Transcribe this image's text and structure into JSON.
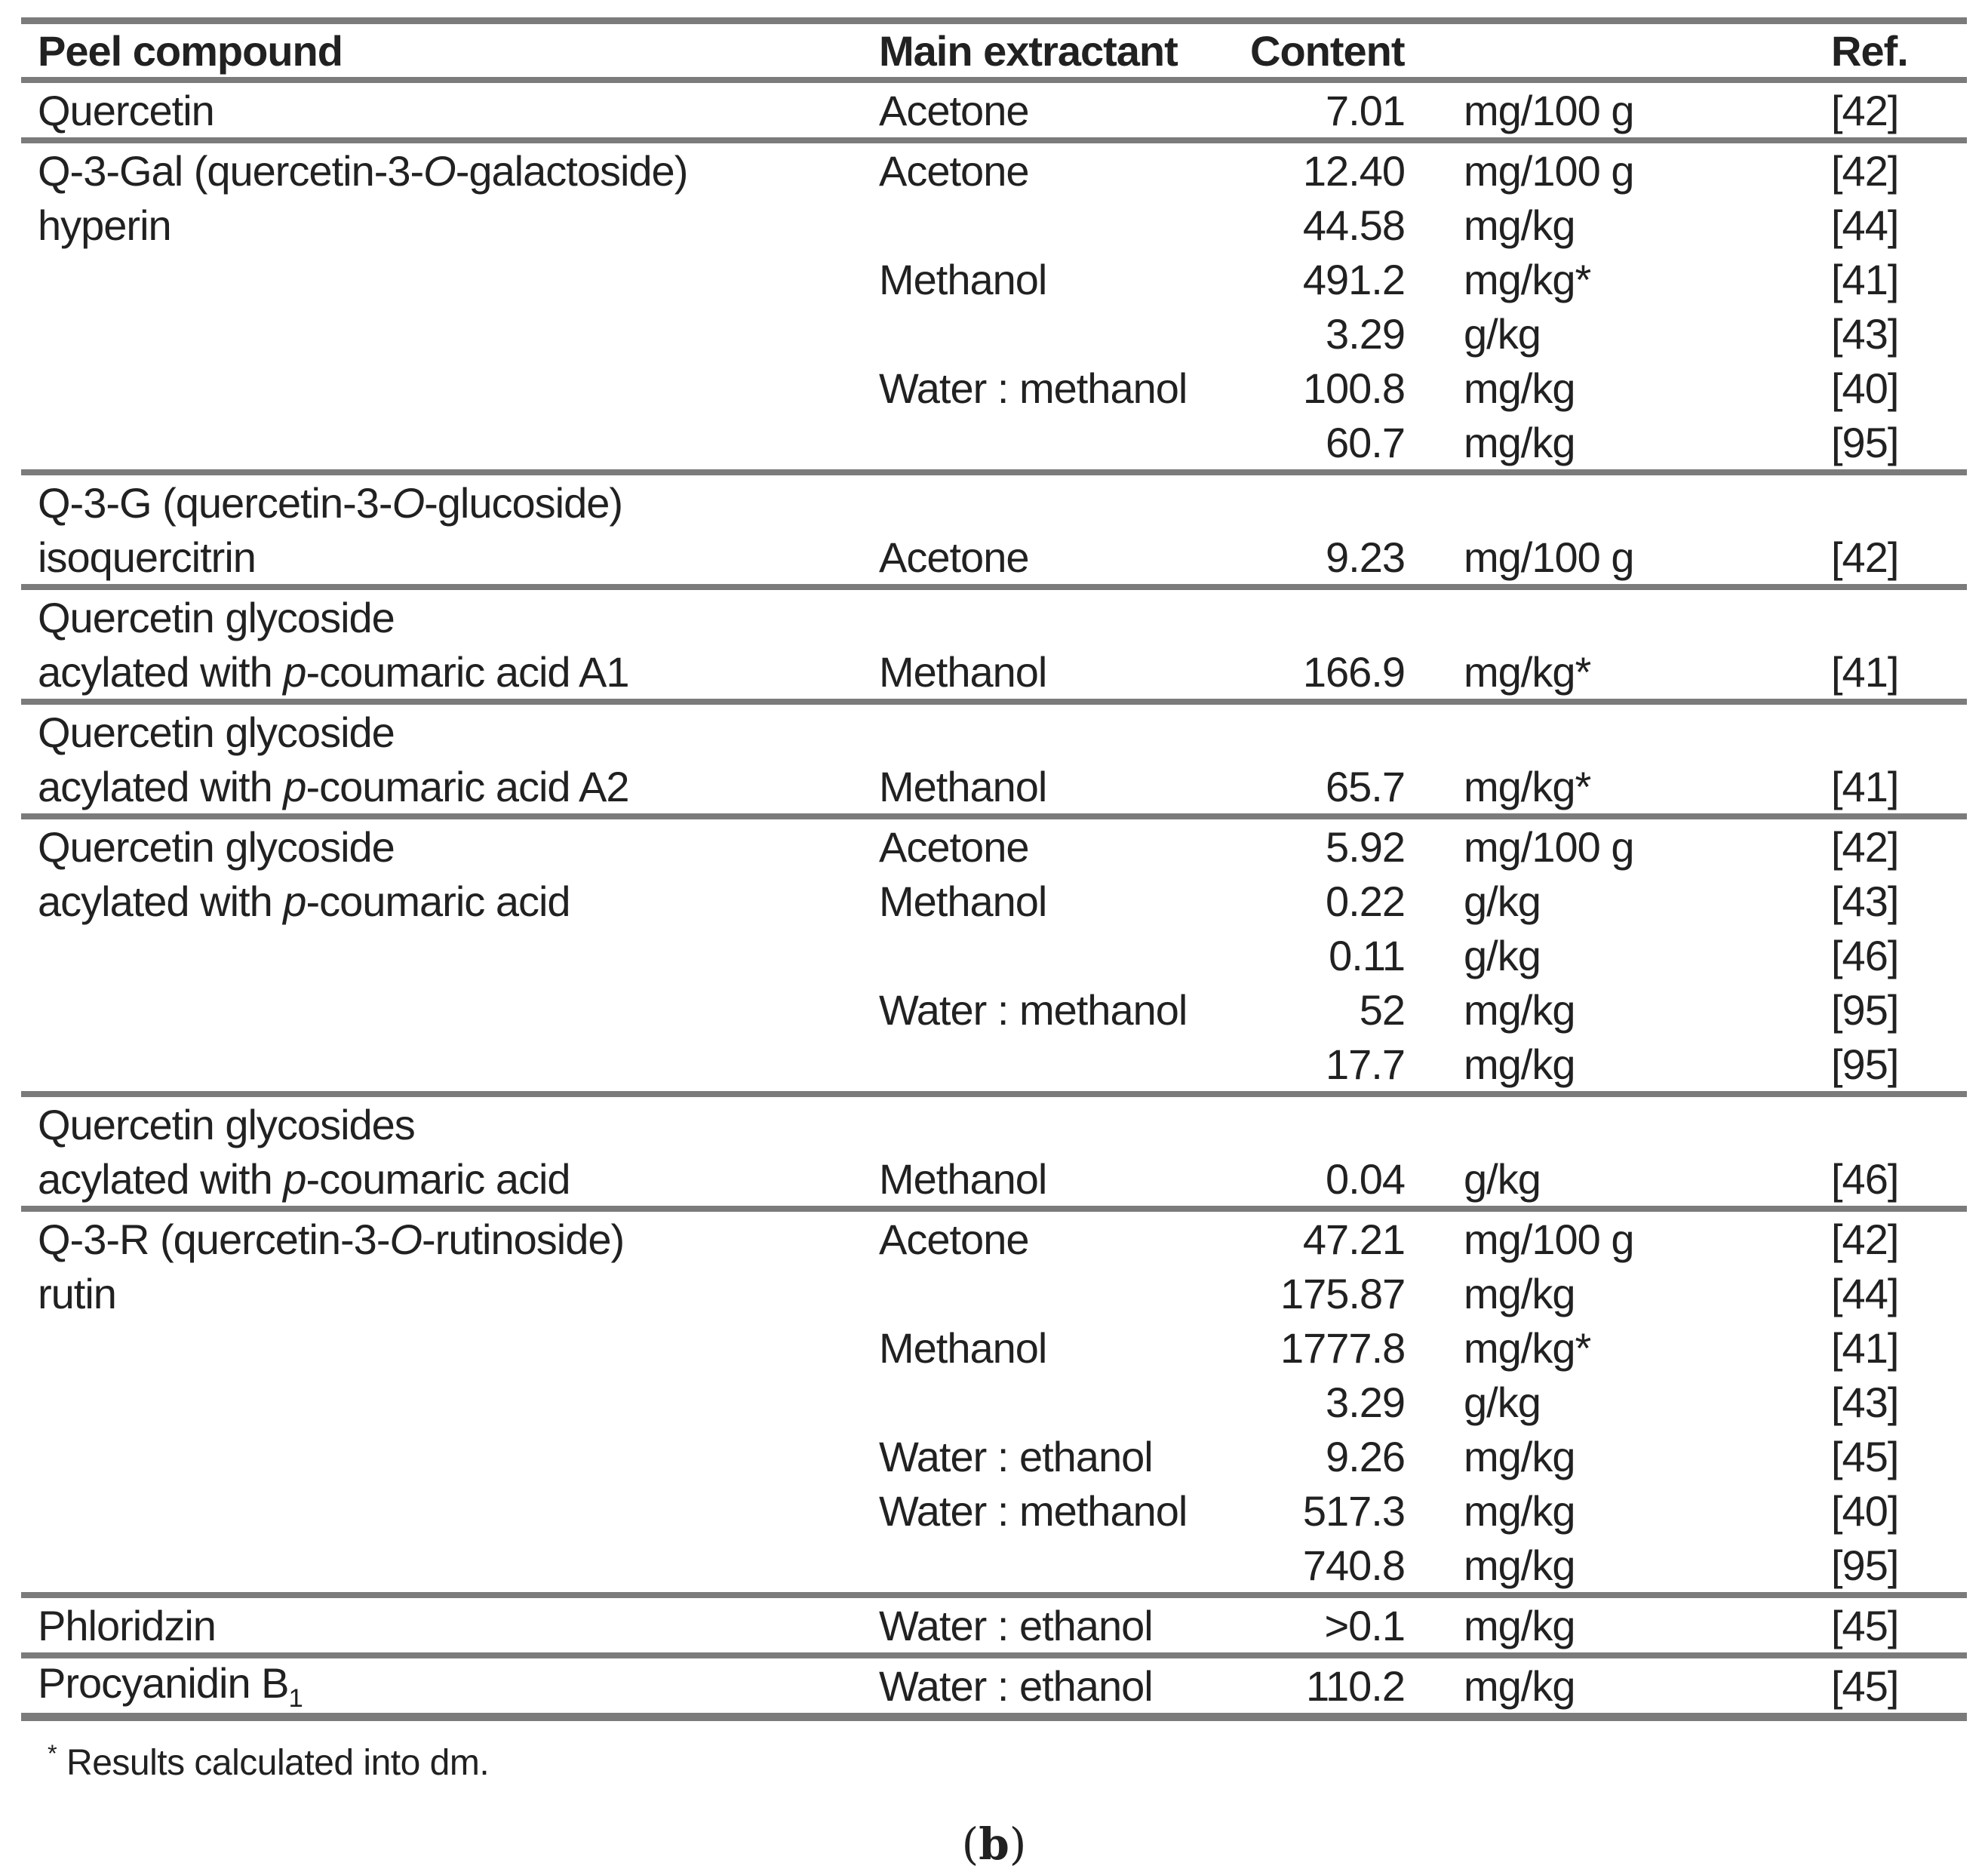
{
  "colors": {
    "rule": "#7b7b7b",
    "text": "#212121",
    "background": "#ffffff"
  },
  "table": {
    "headers": {
      "compound": "Peel compound",
      "extractant": "Main extractant",
      "content": "Content",
      "ref": "Ref."
    },
    "groups": [
      {
        "rows": [
          {
            "compound": "Quercetin",
            "extractant": "Acetone",
            "value": "7.01",
            "unit": "mg/100 g",
            "ref": "[42]"
          }
        ]
      },
      {
        "rows": [
          {
            "compound": [
              "Q-3-Gal (quercetin-3-",
              {
                "i": "O"
              },
              "-galactoside)"
            ],
            "extractant": "Acetone",
            "value": "12.40",
            "unit": "mg/100 g",
            "ref": "[42]"
          },
          {
            "compound": "hyperin",
            "value": "44.58",
            "unit": "mg/kg",
            "ref": "[44]"
          },
          {
            "extractant": "Methanol",
            "value": "491.2",
            "unit": "mg/kg*",
            "ref": "[41]"
          },
          {
            "value": "3.29",
            "unit": "g/kg",
            "ref": "[43]"
          },
          {
            "extractant": "Water : methanol",
            "value": "100.8",
            "unit": "mg/kg",
            "ref": "[40]"
          },
          {
            "value": "60.7",
            "unit": "mg/kg",
            "ref": "[95]"
          }
        ]
      },
      {
        "rows": [
          {
            "compound": [
              "Q-3-G (quercetin-3-",
              {
                "i": "O"
              },
              "-glucoside)"
            ]
          },
          {
            "compound": "isoquercitrin",
            "extractant": "Acetone",
            "value": "9.23",
            "unit": "mg/100 g",
            "ref": "[42]"
          }
        ]
      },
      {
        "rows": [
          {
            "compound": "Quercetin glycoside"
          },
          {
            "compound": [
              "acylated with ",
              {
                "i": "p"
              },
              "-coumaric acid A1"
            ],
            "extractant": "Methanol",
            "value": "166.9",
            "unit": "mg/kg*",
            "ref": "[41]"
          }
        ]
      },
      {
        "rows": [
          {
            "compound": "Quercetin glycoside"
          },
          {
            "compound": [
              "acylated with ",
              {
                "i": "p"
              },
              "-coumaric acid A2"
            ],
            "extractant": "Methanol",
            "value": "65.7",
            "unit": "mg/kg*",
            "ref": "[41]"
          }
        ]
      },
      {
        "rows": [
          {
            "compound": "Quercetin glycoside",
            "extractant": "Acetone",
            "value": "5.92",
            "unit": "mg/100 g",
            "ref": "[42]"
          },
          {
            "compound": [
              "acylated with ",
              {
                "i": "p"
              },
              "-coumaric acid"
            ],
            "extractant": "Methanol",
            "value": "0.22",
            "unit": "g/kg",
            "ref": "[43]"
          },
          {
            "value": "0.11",
            "unit": "g/kg",
            "ref": "[46]"
          },
          {
            "extractant": "Water : methanol",
            "value": "52",
            "unit": "mg/kg",
            "ref": "[95]"
          },
          {
            "value": "17.7",
            "unit": "mg/kg",
            "ref": "[95]"
          }
        ]
      },
      {
        "rows": [
          {
            "compound": "Quercetin glycosides"
          },
          {
            "compound": [
              "acylated with ",
              {
                "i": "p"
              },
              "-coumaric acid"
            ],
            "extractant": "Methanol",
            "value": "0.04",
            "unit": "g/kg",
            "ref": "[46]"
          }
        ]
      },
      {
        "rows": [
          {
            "compound": [
              "Q-3-R (quercetin-3-",
              {
                "i": "O"
              },
              "-rutinoside)"
            ],
            "extractant": "Acetone",
            "value": "47.21",
            "unit": "mg/100 g",
            "ref": "[42]"
          },
          {
            "compound": "rutin",
            "value": "175.87",
            "unit": "mg/kg",
            "ref": "[44]"
          },
          {
            "extractant": "Methanol",
            "value": "1777.8",
            "unit": "mg/kg*",
            "ref": "[41]"
          },
          {
            "value": "3.29",
            "unit": "g/kg",
            "ref": "[43]"
          },
          {
            "extractant": "Water : ethanol",
            "value": "9.26",
            "unit": "mg/kg",
            "ref": "[45]"
          },
          {
            "extractant": "Water : methanol",
            "value": "517.3",
            "unit": "mg/kg",
            "ref": "[40]"
          },
          {
            "value": "740.8",
            "unit": "mg/kg",
            "ref": "[95]"
          }
        ]
      },
      {
        "rows": [
          {
            "compound": "Phloridzin",
            "extractant": "Water : ethanol",
            "value": ">0.1",
            "unit": "mg/kg",
            "ref": "[45]"
          }
        ]
      },
      {
        "rows": [
          {
            "compound": [
              "Procyanidin B",
              {
                "sub": "1"
              }
            ],
            "extractant": "Water : ethanol",
            "value": "110.2",
            "unit": "mg/kg",
            "ref": "[45]"
          }
        ]
      }
    ]
  },
  "footnote": [
    {
      "sup": "*"
    },
    " Results calculated into dm."
  ],
  "caption": [
    "(",
    {
      "b": "b"
    },
    ")"
  ]
}
